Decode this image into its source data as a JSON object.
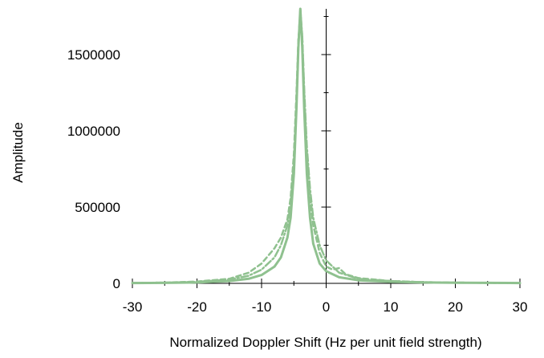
{
  "chart_data": {
    "type": "line",
    "title": "",
    "xlabel": "Normalized Doppler Shift (Hz per unit field strength)",
    "ylabel": "Amplitude",
    "xlim": [
      -30,
      30
    ],
    "ylim": [
      0,
      1800000
    ],
    "x_ticks": [
      -30,
      -20,
      -10,
      0,
      10,
      20,
      30
    ],
    "y_ticks": [
      0,
      500000,
      1000000,
      1500000
    ],
    "x_tick_labels": [
      "-30",
      "-20",
      "-10",
      "0",
      "10",
      "20",
      "30"
    ],
    "y_tick_labels": [
      "0",
      "500000",
      "1000000",
      "1500000"
    ],
    "grid": false,
    "legend": "none",
    "series": [
      {
        "style": "solid",
        "color": "#8fc18f",
        "x": [
          -30,
          -25,
          -20,
          -15,
          -12,
          -10,
          -8,
          -7,
          -6,
          -5.5,
          -5,
          -4.6,
          -4.3,
          -4,
          -3.7,
          -3.4,
          -3,
          -2.5,
          -2,
          -1,
          0,
          2,
          5,
          10,
          15,
          20,
          25,
          30
        ],
        "y": [
          2000,
          3000,
          6000,
          15000,
          30000,
          55000,
          110000,
          170000,
          300000,
          430000,
          720000,
          1150000,
          1550000,
          1800000,
          1550000,
          1150000,
          720000,
          430000,
          260000,
          130000,
          80000,
          40000,
          20000,
          10000,
          6000,
          4000,
          3000,
          2000
        ]
      },
      {
        "style": "dash-dot",
        "color": "#8fc18f",
        "x": [
          -30,
          -25,
          -20,
          -15,
          -12,
          -10,
          -8,
          -7,
          -6,
          -5.5,
          -5,
          -4.6,
          -4.3,
          -4,
          -3.7,
          -3.4,
          -3,
          -2.5,
          -2,
          -1,
          0,
          2,
          5,
          10,
          15,
          20,
          25,
          30
        ],
        "y": [
          3000,
          5000,
          10000,
          25000,
          50000,
          90000,
          170000,
          250000,
          380000,
          520000,
          800000,
          1200000,
          1580000,
          1800000,
          1620000,
          1280000,
          900000,
          620000,
          430000,
          250000,
          150000,
          70000,
          30000,
          15000,
          8000,
          5000,
          3000,
          2000
        ]
      },
      {
        "style": "dashed",
        "color": "#8fc18f",
        "x": [
          -30,
          -25,
          -20,
          -15,
          -12,
          -10,
          -8,
          -7,
          -6,
          -5.5,
          -5,
          -4.6,
          -4.3,
          -4,
          -3.7,
          -3.4,
          -3,
          -2.5,
          -2,
          -1,
          0,
          1,
          2,
          3,
          5,
          10,
          15,
          20,
          25,
          30
        ],
        "y": [
          3000,
          5000,
          12000,
          30000,
          70000,
          130000,
          230000,
          300000,
          420000,
          560000,
          850000,
          1250000,
          1600000,
          1750000,
          1620000,
          1250000,
          850000,
          560000,
          380000,
          200000,
          110000,
          90000,
          100000,
          60000,
          35000,
          15000,
          8000,
          5000,
          3000,
          2000
        ]
      }
    ]
  }
}
